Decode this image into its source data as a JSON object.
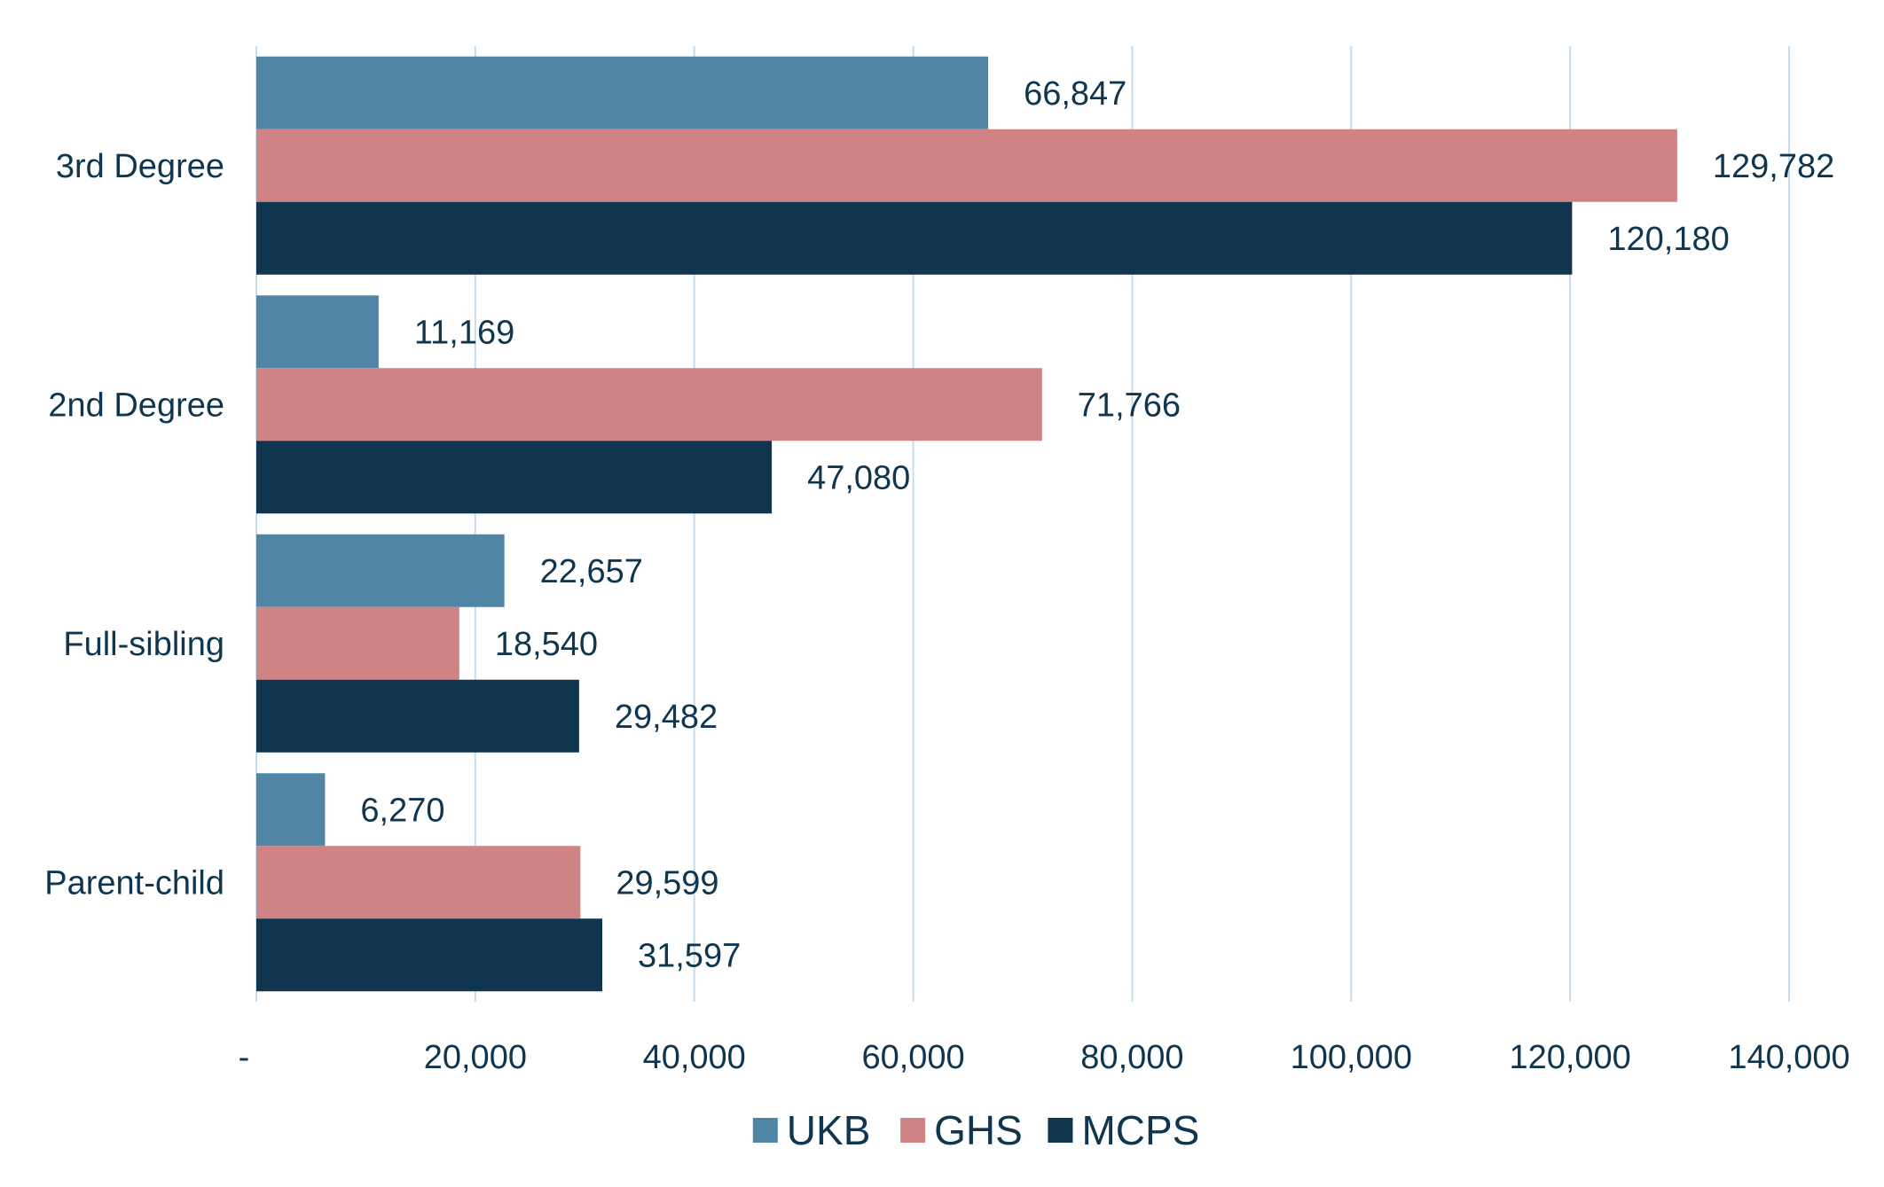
{
  "chart_data": {
    "type": "bar",
    "orientation": "horizontal",
    "title": "",
    "xlabel": "",
    "ylabel": "",
    "categories": [
      "3rd Degree",
      "2nd Degree",
      "Full-sibling",
      "Parent-child"
    ],
    "series": [
      {
        "name": "UKB",
        "color": "#5085A5",
        "values": [
          66847,
          11169,
          22657,
          6270
        ],
        "labels": [
          "66,847",
          "11,169",
          "22,657",
          "6,270"
        ]
      },
      {
        "name": "GHS",
        "color": "#CF8385",
        "values": [
          129782,
          71766,
          18540,
          29599
        ],
        "labels": [
          "129,782",
          "71,766",
          "18,540",
          "29,599"
        ]
      },
      {
        "name": "MCPS",
        "color": "#0F354F",
        "values": [
          120180,
          47080,
          29482,
          31597
        ],
        "labels": [
          "120,180",
          "47,080",
          "29,482",
          "31,597"
        ]
      }
    ],
    "xlim": [
      0,
      140000
    ],
    "x_ticks": [
      0,
      20000,
      40000,
      60000,
      80000,
      100000,
      120000,
      140000
    ],
    "x_tick_labels": [
      "-",
      "20,000",
      "40,000",
      "60,000",
      "80,000",
      "100,000",
      "120,000",
      "140,000"
    ],
    "grid": "vertical",
    "legend_position": "bottom"
  }
}
